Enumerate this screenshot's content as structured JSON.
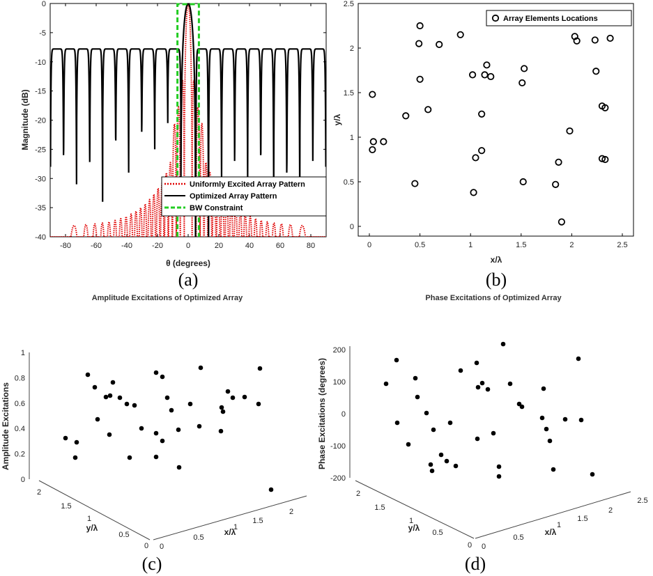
{
  "chart_data": [
    {
      "id": "a",
      "type": "line",
      "panel_label": "(a)",
      "xlabel": "θ (degrees)",
      "ylabel": "Magnitude (dB)",
      "xlim": [
        -90,
        90
      ],
      "ylim": [
        -40,
        0
      ],
      "xticks": [
        "-80",
        "-60",
        "-40",
        "-20",
        "0",
        "20",
        "40",
        "60",
        "80"
      ],
      "yticks": [
        "0",
        "-5",
        "-10",
        "-15",
        "-20",
        "-25",
        "-30",
        "-35",
        "-40"
      ],
      "legend_position": "bottom-right",
      "series": [
        {
          "name": "Uniformly Excited Array Pattern",
          "color": "#e00000",
          "style": "dotted",
          "description_peak_db": 0,
          "sidelobe_max_db": -20
        },
        {
          "name": "Optimized Array Pattern",
          "color": "#000000",
          "style": "solid",
          "sidelobe_level_db": -7.8,
          "null_depths_db": [
            -17.5,
            -20.5,
            -25,
            -22,
            -29,
            -23,
            -34,
            -24,
            -31,
            -26,
            -28,
            -27,
            -33,
            -27,
            -29,
            -26,
            -31,
            -27,
            -29,
            -40,
            -40,
            -30,
            -27,
            -30,
            -26,
            -32,
            -29,
            -34,
            -27,
            -28,
            -24,
            -33,
            -24,
            -29,
            -24,
            -32,
            -22,
            -26,
            -23,
            -22
          ]
        },
        {
          "name": "BW Constraint",
          "color": "#22cc22",
          "style": "dashed",
          "x_bounds": [
            -7,
            7
          ]
        }
      ]
    },
    {
      "id": "b",
      "type": "scatter",
      "panel_label": "(b)",
      "xlabel": "x/λ",
      "ylabel": "y/λ",
      "xlim": [
        0,
        2.5
      ],
      "ylim": [
        0,
        2.5
      ],
      "xticks": [
        "0",
        "0.5",
        "1",
        "1.5",
        "2",
        "2.5"
      ],
      "yticks": [
        "0",
        "0.5",
        "1",
        "1.5",
        "2",
        "2.5"
      ],
      "legend_position": "top-right",
      "series": [
        {
          "name": "Array Elements Locations",
          "points": [
            [
              0.03,
              1.48
            ],
            [
              0.04,
              0.95
            ],
            [
              0.03,
              0.86
            ],
            [
              0.14,
              0.95
            ],
            [
              0.36,
              1.24
            ],
            [
              0.45,
              0.48
            ],
            [
              0.5,
              2.25
            ],
            [
              0.49,
              2.05
            ],
            [
              0.5,
              1.65
            ],
            [
              0.58,
              1.31
            ],
            [
              0.69,
              2.04
            ],
            [
              0.9,
              2.15
            ],
            [
              1.02,
              1.7
            ],
            [
              1.03,
              0.38
            ],
            [
              1.05,
              0.77
            ],
            [
              1.11,
              1.26
            ],
            [
              1.11,
              0.85
            ],
            [
              1.14,
              1.7
            ],
            [
              1.16,
              1.81
            ],
            [
              1.2,
              1.68
            ],
            [
              1.51,
              1.61
            ],
            [
              1.53,
              1.77
            ],
            [
              1.52,
              0.5
            ],
            [
              1.84,
              0.47
            ],
            [
              1.87,
              0.72
            ],
            [
              1.9,
              0.05
            ],
            [
              1.98,
              1.07
            ],
            [
              2.03,
              2.13
            ],
            [
              2.05,
              2.08
            ],
            [
              2.23,
              2.09
            ],
            [
              2.24,
              1.74
            ],
            [
              2.3,
              1.35
            ],
            [
              2.33,
              1.33
            ],
            [
              2.3,
              0.76
            ],
            [
              2.33,
              0.75
            ],
            [
              2.38,
              2.11
            ]
          ]
        }
      ]
    },
    {
      "id": "c",
      "type": "scatter",
      "panel_label": "(c)",
      "title": "Amplitude Excitations of Optimized Array",
      "xlabel": "x/λ",
      "ylabel": "y/λ",
      "zlabel": "Amplitude Excitations",
      "zlim": [
        0,
        1
      ],
      "xticks": [
        "0",
        "0.5",
        "1",
        "1.5",
        "2"
      ],
      "yticks": [
        "0",
        "0.5",
        "1",
        "1.5",
        "2"
      ],
      "zticks": [
        "0",
        "0.2",
        "0.4",
        "0.6",
        "0.8",
        "1"
      ],
      "points_screen_estimate": [
        [
          0.32,
          0.3
        ],
        [
          0.28,
          0.28
        ],
        [
          0.16,
          0.25
        ],
        [
          0.81,
          0.2
        ],
        [
          0.72,
          0.15
        ],
        [
          0.47,
          0.2
        ],
        [
          0.64,
          0.18
        ],
        [
          0.65,
          0.16
        ],
        [
          0.75,
          0.14
        ],
        [
          0.35,
          0.12
        ],
        [
          0.64,
          0.1
        ],
        [
          0.58,
          0.1
        ],
        [
          0.57,
          0.08
        ],
        [
          0.17,
          0.05
        ],
        [
          0.4,
          0.1
        ],
        [
          0.83,
          0.05
        ],
        [
          0.36,
          0.08
        ],
        [
          0.17,
          0.05
        ],
        [
          0.3,
          0.05
        ],
        [
          0.63,
          0.05
        ],
        [
          0.8,
          0.04
        ],
        [
          0.53,
          0.04
        ],
        [
          0.58,
          0.04
        ],
        [
          0.4,
          0.05
        ],
        [
          0.09,
          0.02
        ],
        [
          0.87,
          0.05
        ],
        [
          0.41,
          0.05
        ],
        [
          0.37,
          0.05
        ],
        [
          0.55,
          0.04
        ],
        [
          0.52,
          0.05
        ],
        [
          0.68,
          0.04
        ],
        [
          0.64,
          0.04
        ],
        [
          0.64,
          0.03
        ],
        [
          0.58,
          0.03
        ],
        [
          0.86,
          0.02
        ],
        [
          0.02,
          0.02
        ]
      ]
    },
    {
      "id": "d",
      "type": "scatter",
      "panel_label": "(d)",
      "title": "Phase Excitations of Optimized Array",
      "xlabel": "x/λ",
      "ylabel": "y/λ",
      "zlabel": "Phase Excitations (degrees)",
      "zlim": [
        -200,
        200
      ],
      "xticks": [
        "0",
        "0.5",
        "1",
        "1.5",
        "2",
        "2.5"
      ],
      "yticks": [
        "0",
        "0.5",
        "1",
        "1.5",
        "2"
      ],
      "zticks": [
        "200",
        "100",
        "0",
        "-100",
        "-200"
      ]
    }
  ]
}
